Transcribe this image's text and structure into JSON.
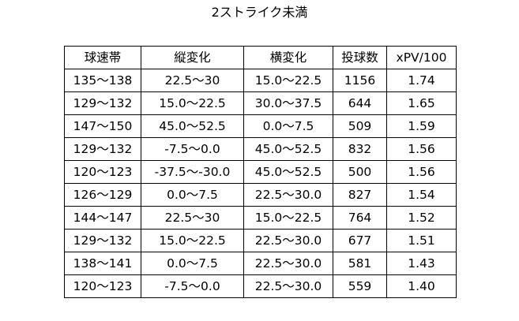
{
  "title": "2ストライク未満",
  "table": {
    "headers": [
      "球速帯",
      "縦変化",
      "横変化",
      "投球数",
      "xPV/100"
    ],
    "rows": [
      [
        "135～138",
        "22.5～30",
        "15.0～22.5",
        "1156",
        "1.74"
      ],
      [
        "129～132",
        "15.0～22.5",
        "30.0～37.5",
        "644",
        "1.65"
      ],
      [
        "147～150",
        "45.0～52.5",
        "0.0～7.5",
        "509",
        "1.59"
      ],
      [
        "129～132",
        "-7.5～0.0",
        "45.0～52.5",
        "832",
        "1.56"
      ],
      [
        "120～123",
        "-37.5～-30.0",
        "45.0～52.5",
        "500",
        "1.56"
      ],
      [
        "126～129",
        "0.0～7.5",
        "22.5～30.0",
        "827",
        "1.54"
      ],
      [
        "144～147",
        "22.5～30",
        "15.0～22.5",
        "764",
        "1.52"
      ],
      [
        "129～132",
        "15.0～22.5",
        "22.5～30.0",
        "677",
        "1.51"
      ],
      [
        "138～141",
        "0.0～7.5",
        "22.5～30.0",
        "581",
        "1.43"
      ],
      [
        "120～123",
        "-7.5～0.0",
        "22.5～30.0",
        "559",
        "1.40"
      ]
    ]
  }
}
